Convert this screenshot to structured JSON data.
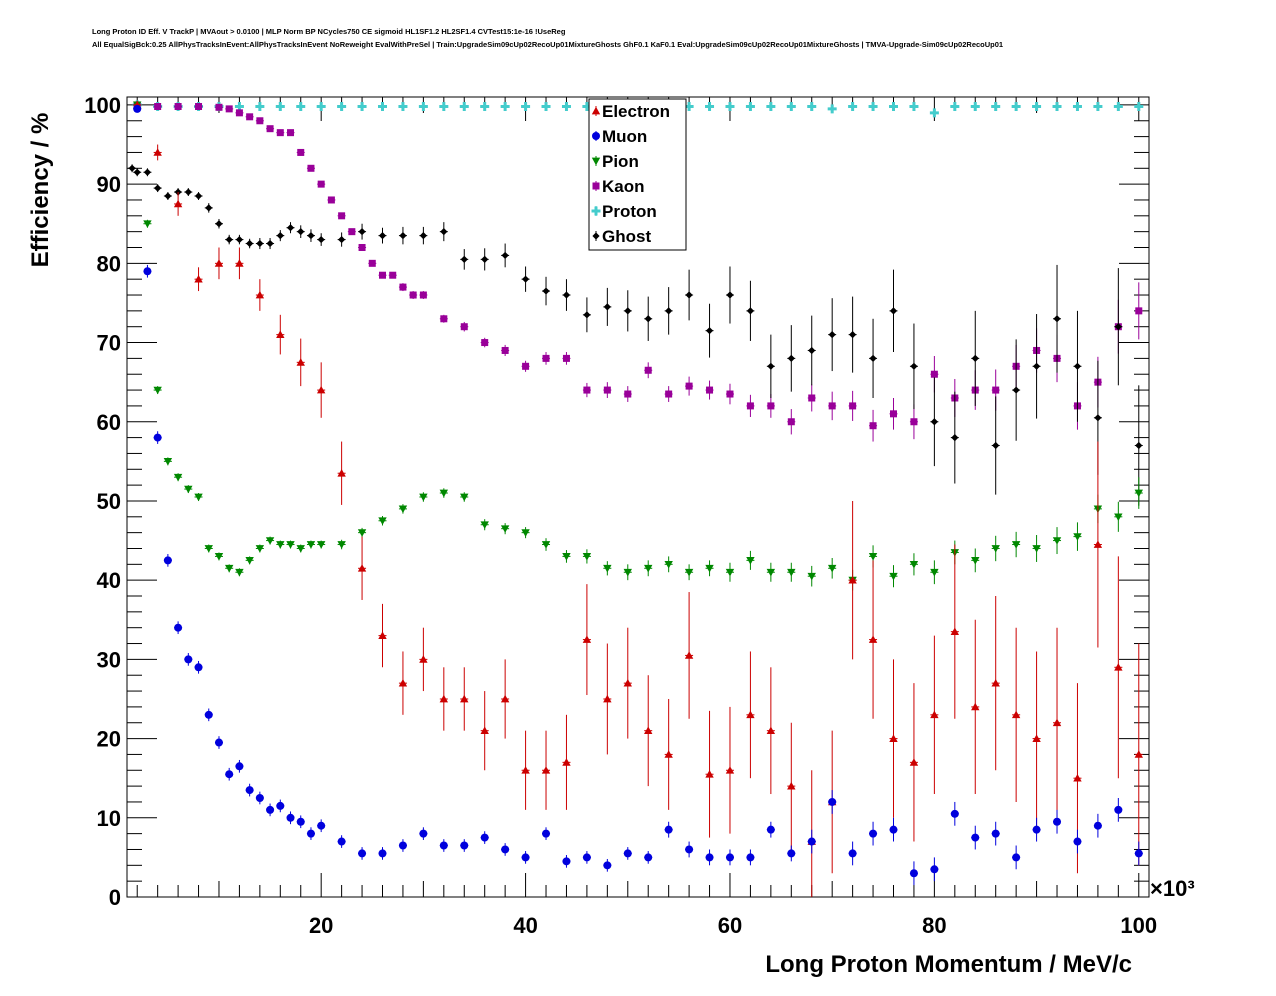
{
  "title_lines": [
    "Long Proton ID Eff. V TrackP | MVAout > 0.0100 | MLP Norm BP NCycles750 CE sigmoid HL1SF1.2 HL2SF1.4 CVTest15:1e-16 !UseReg",
    "All EqualSigBck:0.25 AllPhysTracksInEvent:AllPhysTracksInEvent NoReweight EvalWithPreSel | Train:UpgradeSim09cUp02RecoUp01MixtureGhosts GhF0.1 KaF0.1 Eval:UpgradeSim09cUp02RecoUp01MixtureGhosts | TMVA-Upgrade-Sim09cUp02RecoUp01"
  ],
  "chart_data": {
    "type": "scatter",
    "xlabel": "Long Proton Momentum / MeV/c",
    "ylabel": "Efficiency / %",
    "x_multiplier": "×10³",
    "xlim": [
      1,
      101
    ],
    "ylim": [
      0,
      101
    ],
    "xticks": [
      20,
      40,
      60,
      80,
      100
    ],
    "yticks": [
      0,
      10,
      20,
      30,
      40,
      50,
      60,
      70,
      80,
      90,
      100
    ],
    "grid": false,
    "legend_position": "top-center",
    "series": [
      {
        "name": "Electron",
        "color": "#cc0000",
        "marker": "triangle-up",
        "x": [
          2,
          4,
          6,
          8,
          10,
          12,
          14,
          16,
          18,
          20,
          22,
          24,
          26,
          28,
          30,
          32,
          34,
          36,
          38,
          40,
          42,
          44,
          46,
          48,
          50,
          52,
          54,
          56,
          58,
          60,
          62,
          64,
          66,
          68,
          70,
          72,
          74,
          76,
          78,
          80,
          82,
          84,
          86,
          88,
          90,
          92,
          94,
          96,
          98,
          100
        ],
        "y": [
          100,
          94,
          87.5,
          78,
          80,
          80,
          76,
          71,
          67.5,
          64,
          53.5,
          41.5,
          33,
          27,
          30,
          25,
          25,
          21,
          25,
          16,
          16,
          17,
          32.5,
          25,
          27,
          21,
          18,
          30.5,
          15.5,
          16,
          23,
          21,
          14,
          7,
          12,
          40,
          32.5,
          20,
          17,
          23,
          33.5,
          24,
          27,
          23,
          20,
          22,
          15,
          44.5,
          29,
          18
        ],
        "err": [
          0.5,
          1,
          1.5,
          1.5,
          2,
          2,
          2,
          2.5,
          3,
          3.5,
          4,
          4,
          4,
          4,
          4,
          4,
          4,
          5,
          5,
          5,
          5,
          6,
          7,
          7,
          7,
          7,
          7,
          8,
          8,
          8,
          8,
          8,
          8,
          9,
          9,
          10,
          10,
          10,
          10,
          10,
          11,
          11,
          11,
          11,
          11,
          12,
          12,
          13,
          14,
          14
        ]
      },
      {
        "name": "Muon",
        "color": "#0000dd",
        "marker": "circle",
        "x": [
          2,
          3,
          4,
          5,
          6,
          7,
          8,
          9,
          10,
          11,
          12,
          13,
          14,
          15,
          16,
          17,
          18,
          19,
          20,
          22,
          24,
          26,
          28,
          30,
          32,
          34,
          36,
          38,
          40,
          42,
          44,
          46,
          48,
          50,
          52,
          54,
          56,
          58,
          60,
          62,
          64,
          66,
          68,
          70,
          72,
          74,
          76,
          78,
          80,
          82,
          84,
          86,
          88,
          90,
          92,
          94,
          96,
          98,
          100
        ],
        "y": [
          99.5,
          79,
          58,
          42.5,
          34,
          30,
          29,
          23,
          19.5,
          15.5,
          16.5,
          13.5,
          12.5,
          11,
          11.5,
          10,
          9.5,
          8,
          9,
          7,
          5.5,
          5.5,
          6.5,
          8,
          6.5,
          6.5,
          7.5,
          6,
          5,
          8,
          4.5,
          5,
          4,
          5.5,
          5,
          8.5,
          6,
          5,
          5,
          5,
          8.5,
          5.5,
          7,
          12,
          5.5,
          8,
          8.5,
          3,
          3.5,
          10.5,
          7.5,
          8,
          5,
          8.5,
          9.5,
          7,
          9,
          11,
          5.5
        ],
        "err": [
          0.3,
          0.8,
          0.8,
          0.8,
          0.8,
          0.8,
          0.8,
          0.8,
          0.8,
          0.8,
          0.8,
          0.8,
          0.8,
          0.8,
          0.8,
          0.8,
          0.8,
          0.8,
          0.8,
          0.8,
          0.8,
          0.8,
          0.8,
          0.8,
          0.8,
          0.8,
          0.8,
          0.8,
          0.8,
          0.8,
          0.8,
          0.8,
          0.8,
          0.8,
          0.8,
          1,
          1,
          1,
          1,
          1,
          1,
          1,
          1.5,
          1.5,
          1.5,
          1.5,
          1.5,
          1.5,
          1.5,
          1.5,
          1.5,
          1.5,
          1.5,
          1.5,
          1.5,
          1.5,
          1.5,
          1.5,
          1.5
        ]
      },
      {
        "name": "Pion",
        "color": "#008800",
        "marker": "triangle-down",
        "x": [
          2,
          3,
          4,
          5,
          6,
          7,
          8,
          9,
          10,
          11,
          12,
          13,
          14,
          15,
          16,
          17,
          18,
          19,
          20,
          22,
          24,
          26,
          28,
          30,
          32,
          34,
          36,
          38,
          40,
          42,
          44,
          46,
          48,
          50,
          52,
          54,
          56,
          58,
          60,
          62,
          64,
          66,
          68,
          70,
          72,
          74,
          76,
          78,
          80,
          82,
          84,
          86,
          88,
          90,
          92,
          94,
          96,
          98,
          100
        ],
        "y": [
          100,
          85,
          64,
          55,
          53,
          51.5,
          50.5,
          44,
          43,
          41.5,
          41,
          42.5,
          44,
          45,
          44.5,
          44.5,
          44,
          44.5,
          44.5,
          44.5,
          46,
          47.5,
          49,
          50.5,
          51,
          50.5,
          47,
          46.5,
          46,
          44.5,
          43,
          43,
          41.5,
          41,
          41.5,
          42,
          41,
          41.5,
          41,
          42.5,
          41,
          41,
          40.5,
          41.5,
          40,
          43,
          40.5,
          42,
          41,
          43.5,
          42.5,
          44,
          44.5,
          44,
          45,
          45.5,
          49,
          48,
          51
        ],
        "err": [
          0.3,
          0.5,
          0.5,
          0.5,
          0.5,
          0.5,
          0.5,
          0.5,
          0.5,
          0.5,
          0.5,
          0.5,
          0.5,
          0.5,
          0.5,
          0.5,
          0.5,
          0.5,
          0.5,
          0.6,
          0.6,
          0.6,
          0.6,
          0.6,
          0.6,
          0.6,
          0.7,
          0.7,
          0.7,
          0.8,
          0.8,
          0.9,
          0.9,
          1,
          1,
          1,
          1,
          1,
          1.2,
          1.2,
          1.2,
          1.2,
          1.3,
          1.3,
          1.3,
          1.4,
          1.4,
          1.4,
          1.5,
          1.5,
          1.5,
          1.6,
          1.6,
          1.7,
          1.7,
          1.8,
          1.8,
          1.9,
          2
        ]
      },
      {
        "name": "Kaon",
        "color": "#990099",
        "marker": "square",
        "x": [
          2,
          4,
          6,
          8,
          10,
          11,
          12,
          13,
          14,
          15,
          16,
          17,
          18,
          19,
          20,
          21,
          22,
          23,
          24,
          25,
          26,
          27,
          28,
          29,
          30,
          32,
          34,
          36,
          38,
          40,
          42,
          44,
          46,
          48,
          50,
          52,
          54,
          56,
          58,
          60,
          62,
          64,
          66,
          68,
          70,
          72,
          74,
          76,
          78,
          80,
          82,
          84,
          86,
          88,
          90,
          92,
          94,
          96,
          98,
          100
        ],
        "y": [
          100,
          99.8,
          99.8,
          99.8,
          99.7,
          99.5,
          99,
          98.5,
          98,
          97,
          96.5,
          96.5,
          94,
          92,
          90,
          88,
          86,
          84,
          82,
          80,
          78.5,
          78.5,
          77,
          76,
          76,
          73,
          72,
          70,
          69,
          67,
          68,
          68,
          64,
          64,
          63.5,
          66.5,
          63.5,
          64.5,
          64,
          63.5,
          62,
          62,
          60,
          63,
          62,
          62,
          59.5,
          61,
          60,
          66,
          63,
          64,
          64,
          67,
          69,
          68,
          62,
          65,
          72,
          74
        ],
        "err": [
          0.1,
          0.1,
          0.1,
          0.1,
          0.2,
          0.2,
          0.3,
          0.3,
          0.3,
          0.3,
          0.4,
          0.4,
          0.4,
          0.4,
          0.4,
          0.4,
          0.4,
          0.4,
          0.4,
          0.4,
          0.4,
          0.4,
          0.5,
          0.5,
          0.5,
          0.5,
          0.6,
          0.6,
          0.7,
          0.7,
          0.8,
          0.8,
          0.9,
          1,
          1,
          1,
          1,
          1.2,
          1.2,
          1.3,
          1.4,
          1.5,
          1.6,
          1.7,
          1.8,
          1.9,
          2,
          2,
          2.2,
          2.3,
          2.4,
          2.5,
          2.6,
          2.7,
          2.8,
          3,
          3,
          3.2,
          3.4,
          3.6
        ]
      },
      {
        "name": "Proton",
        "color": "#44cccc",
        "marker": "cross",
        "x": [
          2,
          4,
          6,
          8,
          10,
          12,
          14,
          16,
          18,
          20,
          22,
          24,
          26,
          28,
          30,
          32,
          34,
          36,
          38,
          40,
          42,
          44,
          46,
          48,
          50,
          52,
          54,
          56,
          58,
          60,
          62,
          64,
          66,
          68,
          70,
          72,
          74,
          76,
          78,
          80,
          82,
          84,
          86,
          88,
          90,
          92,
          94,
          96,
          98,
          100
        ],
        "y": [
          100,
          99.8,
          99.8,
          99.8,
          99.8,
          99.8,
          99.8,
          99.8,
          99.8,
          99.8,
          99.8,
          99.8,
          99.8,
          99.8,
          99.8,
          99.8,
          99.8,
          99.8,
          99.8,
          99.8,
          99.8,
          99.8,
          99.8,
          99.8,
          99.8,
          99.8,
          99.8,
          99.8,
          99.8,
          99.8,
          99.8,
          99.8,
          99.8,
          99.8,
          99.5,
          99.8,
          99.8,
          99.8,
          99.8,
          99,
          99.8,
          99.8,
          99.8,
          99.8,
          99.8,
          99.8,
          99.8,
          99.8,
          99.8,
          99.8
        ],
        "err": [
          0.1,
          0.1,
          0.1,
          0.1,
          0.1,
          0.1,
          0.1,
          0.1,
          0.1,
          0.1,
          0.1,
          0.1,
          0.1,
          0.1,
          0.1,
          0.1,
          0.1,
          0.1,
          0.1,
          0.1,
          0.1,
          0.1,
          0.1,
          0.1,
          0.1,
          0.1,
          0.1,
          0.1,
          0.1,
          0.2,
          0.2,
          0.2,
          0.2,
          0.2,
          0.3,
          0.3,
          0.3,
          0.3,
          0.3,
          0.3,
          0.3,
          0.3,
          0.3,
          0.3,
          0.3,
          0.3,
          0.3,
          0.3,
          0.3,
          0.3
        ]
      },
      {
        "name": "Ghost",
        "color": "#000000",
        "marker": "diamond",
        "x": [
          1.5,
          2,
          3,
          4,
          5,
          6,
          7,
          8,
          9,
          10,
          11,
          12,
          13,
          14,
          15,
          16,
          17,
          18,
          19,
          20,
          22,
          24,
          26,
          28,
          30,
          32,
          34,
          36,
          38,
          40,
          42,
          44,
          46,
          48,
          50,
          52,
          54,
          56,
          58,
          60,
          62,
          64,
          66,
          68,
          70,
          72,
          74,
          76,
          78,
          80,
          82,
          84,
          86,
          88,
          90,
          92,
          94,
          96,
          98,
          100
        ],
        "y": [
          92,
          91.5,
          91.5,
          89.5,
          88.5,
          89,
          89,
          88.5,
          87,
          85,
          83,
          83,
          82.5,
          82.5,
          82.5,
          83.5,
          84.5,
          84,
          83.5,
          83,
          83,
          84,
          83.5,
          83.5,
          83.5,
          84,
          80.5,
          80.5,
          81,
          78,
          76.5,
          76,
          73.5,
          74.5,
          74,
          73,
          74,
          76,
          71.5,
          76,
          74,
          67,
          68,
          69,
          71,
          71,
          68,
          74,
          67,
          60,
          58,
          68,
          57,
          64,
          67,
          73,
          67,
          60.5,
          72,
          57
        ],
        "err": [
          0.5,
          0.5,
          0.5,
          0.5,
          0.5,
          0.5,
          0.5,
          0.5,
          0.6,
          0.6,
          0.6,
          0.6,
          0.6,
          0.7,
          0.7,
          0.7,
          0.7,
          0.8,
          0.8,
          0.8,
          0.9,
          1,
          1,
          1.1,
          1.1,
          1.2,
          1.3,
          1.4,
          1.5,
          1.6,
          1.8,
          2,
          2.2,
          2.4,
          2.6,
          2.8,
          3,
          3.2,
          3.4,
          3.6,
          3.8,
          4,
          4.2,
          4.4,
          4.6,
          4.8,
          5,
          5.2,
          5.4,
          5.6,
          5.8,
          6,
          6.2,
          6.4,
          6.6,
          6.8,
          7,
          7.2,
          7.4,
          7.6
        ]
      }
    ]
  }
}
